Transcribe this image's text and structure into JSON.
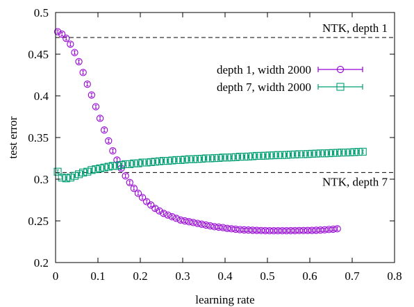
{
  "chart_data": {
    "type": "scatter",
    "xlabel": "learning rate",
    "ylabel": "test error",
    "xlim": [
      0,
      0.8
    ],
    "ylim": [
      0.2,
      0.5
    ],
    "xticks": [
      "0",
      "0.1",
      "0.2",
      "0.3",
      "0.4",
      "0.5",
      "0.6",
      "0.7",
      "0.8"
    ],
    "yticks": [
      "0.2",
      "0.25",
      "0.3",
      "0.35",
      "0.4",
      "0.45",
      "0.5"
    ],
    "legend_placement": "top-right",
    "grid": false,
    "series": [
      {
        "name": "depth 1, width 2000",
        "marker": "circle",
        "color": "#9400d3",
        "error_bars": true,
        "x": [
          0.005,
          0.015,
          0.025,
          0.035,
          0.045,
          0.055,
          0.065,
          0.075,
          0.085,
          0.095,
          0.105,
          0.115,
          0.125,
          0.135,
          0.145,
          0.155,
          0.165,
          0.175,
          0.185,
          0.195,
          0.205,
          0.215,
          0.225,
          0.235,
          0.245,
          0.255,
          0.265,
          0.275,
          0.285,
          0.295,
          0.305,
          0.315,
          0.325,
          0.335,
          0.345,
          0.355,
          0.365,
          0.375,
          0.385,
          0.395,
          0.405,
          0.415,
          0.425,
          0.435,
          0.445,
          0.455,
          0.465,
          0.475,
          0.485,
          0.495,
          0.505,
          0.515,
          0.525,
          0.535,
          0.545,
          0.555,
          0.565,
          0.575,
          0.585,
          0.595,
          0.605,
          0.615,
          0.625,
          0.635,
          0.645,
          0.655,
          0.665
        ],
        "y": [
          0.477,
          0.474,
          0.469,
          0.462,
          0.452,
          0.441,
          0.428,
          0.414,
          0.401,
          0.387,
          0.373,
          0.359,
          0.346,
          0.334,
          0.323,
          0.313,
          0.304,
          0.296,
          0.289,
          0.283,
          0.278,
          0.273,
          0.269,
          0.265,
          0.262,
          0.259,
          0.257,
          0.255,
          0.253,
          0.251,
          0.25,
          0.249,
          0.248,
          0.247,
          0.246,
          0.245,
          0.244,
          0.243,
          0.2425,
          0.242,
          0.241,
          0.2405,
          0.24,
          0.2395,
          0.2392,
          0.239,
          0.2388,
          0.2386,
          0.2384,
          0.2383,
          0.2382,
          0.2382,
          0.2382,
          0.2382,
          0.2382,
          0.2383,
          0.2383,
          0.2384,
          0.2384,
          0.2385,
          0.2386,
          0.2388,
          0.239,
          0.2393,
          0.2397,
          0.24,
          0.2405
        ]
      },
      {
        "name": "depth 7, width 2000",
        "marker": "square",
        "color": "#009e73",
        "error_bars": true,
        "x": [
          0.005,
          0.015,
          0.025,
          0.035,
          0.045,
          0.055,
          0.065,
          0.075,
          0.085,
          0.095,
          0.105,
          0.115,
          0.125,
          0.135,
          0.145,
          0.155,
          0.165,
          0.175,
          0.185,
          0.195,
          0.205,
          0.215,
          0.225,
          0.235,
          0.245,
          0.255,
          0.265,
          0.275,
          0.285,
          0.295,
          0.305,
          0.315,
          0.325,
          0.335,
          0.345,
          0.355,
          0.365,
          0.375,
          0.385,
          0.395,
          0.405,
          0.415,
          0.425,
          0.435,
          0.445,
          0.455,
          0.465,
          0.475,
          0.485,
          0.495,
          0.505,
          0.515,
          0.525,
          0.535,
          0.545,
          0.555,
          0.565,
          0.575,
          0.585,
          0.595,
          0.605,
          0.615,
          0.625,
          0.635,
          0.645,
          0.655,
          0.665,
          0.675,
          0.685,
          0.695,
          0.705,
          0.715,
          0.725
        ],
        "y": [
          0.309,
          0.302,
          0.301,
          0.302,
          0.304,
          0.306,
          0.308,
          0.309,
          0.311,
          0.312,
          0.313,
          0.314,
          0.315,
          0.316,
          0.316,
          0.317,
          0.318,
          0.318,
          0.319,
          0.319,
          0.32,
          0.32,
          0.3205,
          0.321,
          0.3215,
          0.322,
          0.322,
          0.3225,
          0.323,
          0.323,
          0.3235,
          0.324,
          0.324,
          0.3243,
          0.3245,
          0.325,
          0.325,
          0.3253,
          0.3255,
          0.326,
          0.326,
          0.3262,
          0.3265,
          0.327,
          0.327,
          0.3272,
          0.3275,
          0.328,
          0.328,
          0.3282,
          0.3285,
          0.3287,
          0.329,
          0.329,
          0.3292,
          0.3295,
          0.3297,
          0.33,
          0.33,
          0.3302,
          0.3305,
          0.3307,
          0.331,
          0.331,
          0.3312,
          0.3315,
          0.3317,
          0.332,
          0.332,
          0.3322,
          0.3325,
          0.3328,
          0.333
        ]
      }
    ],
    "reference_lines": [
      {
        "label": "NTK, depth 1",
        "y": 0.47,
        "style": "dashed",
        "color": "#000000"
      },
      {
        "label": "NTK, depth 7",
        "y": 0.308,
        "style": "dashed",
        "color": "#000000"
      }
    ]
  }
}
